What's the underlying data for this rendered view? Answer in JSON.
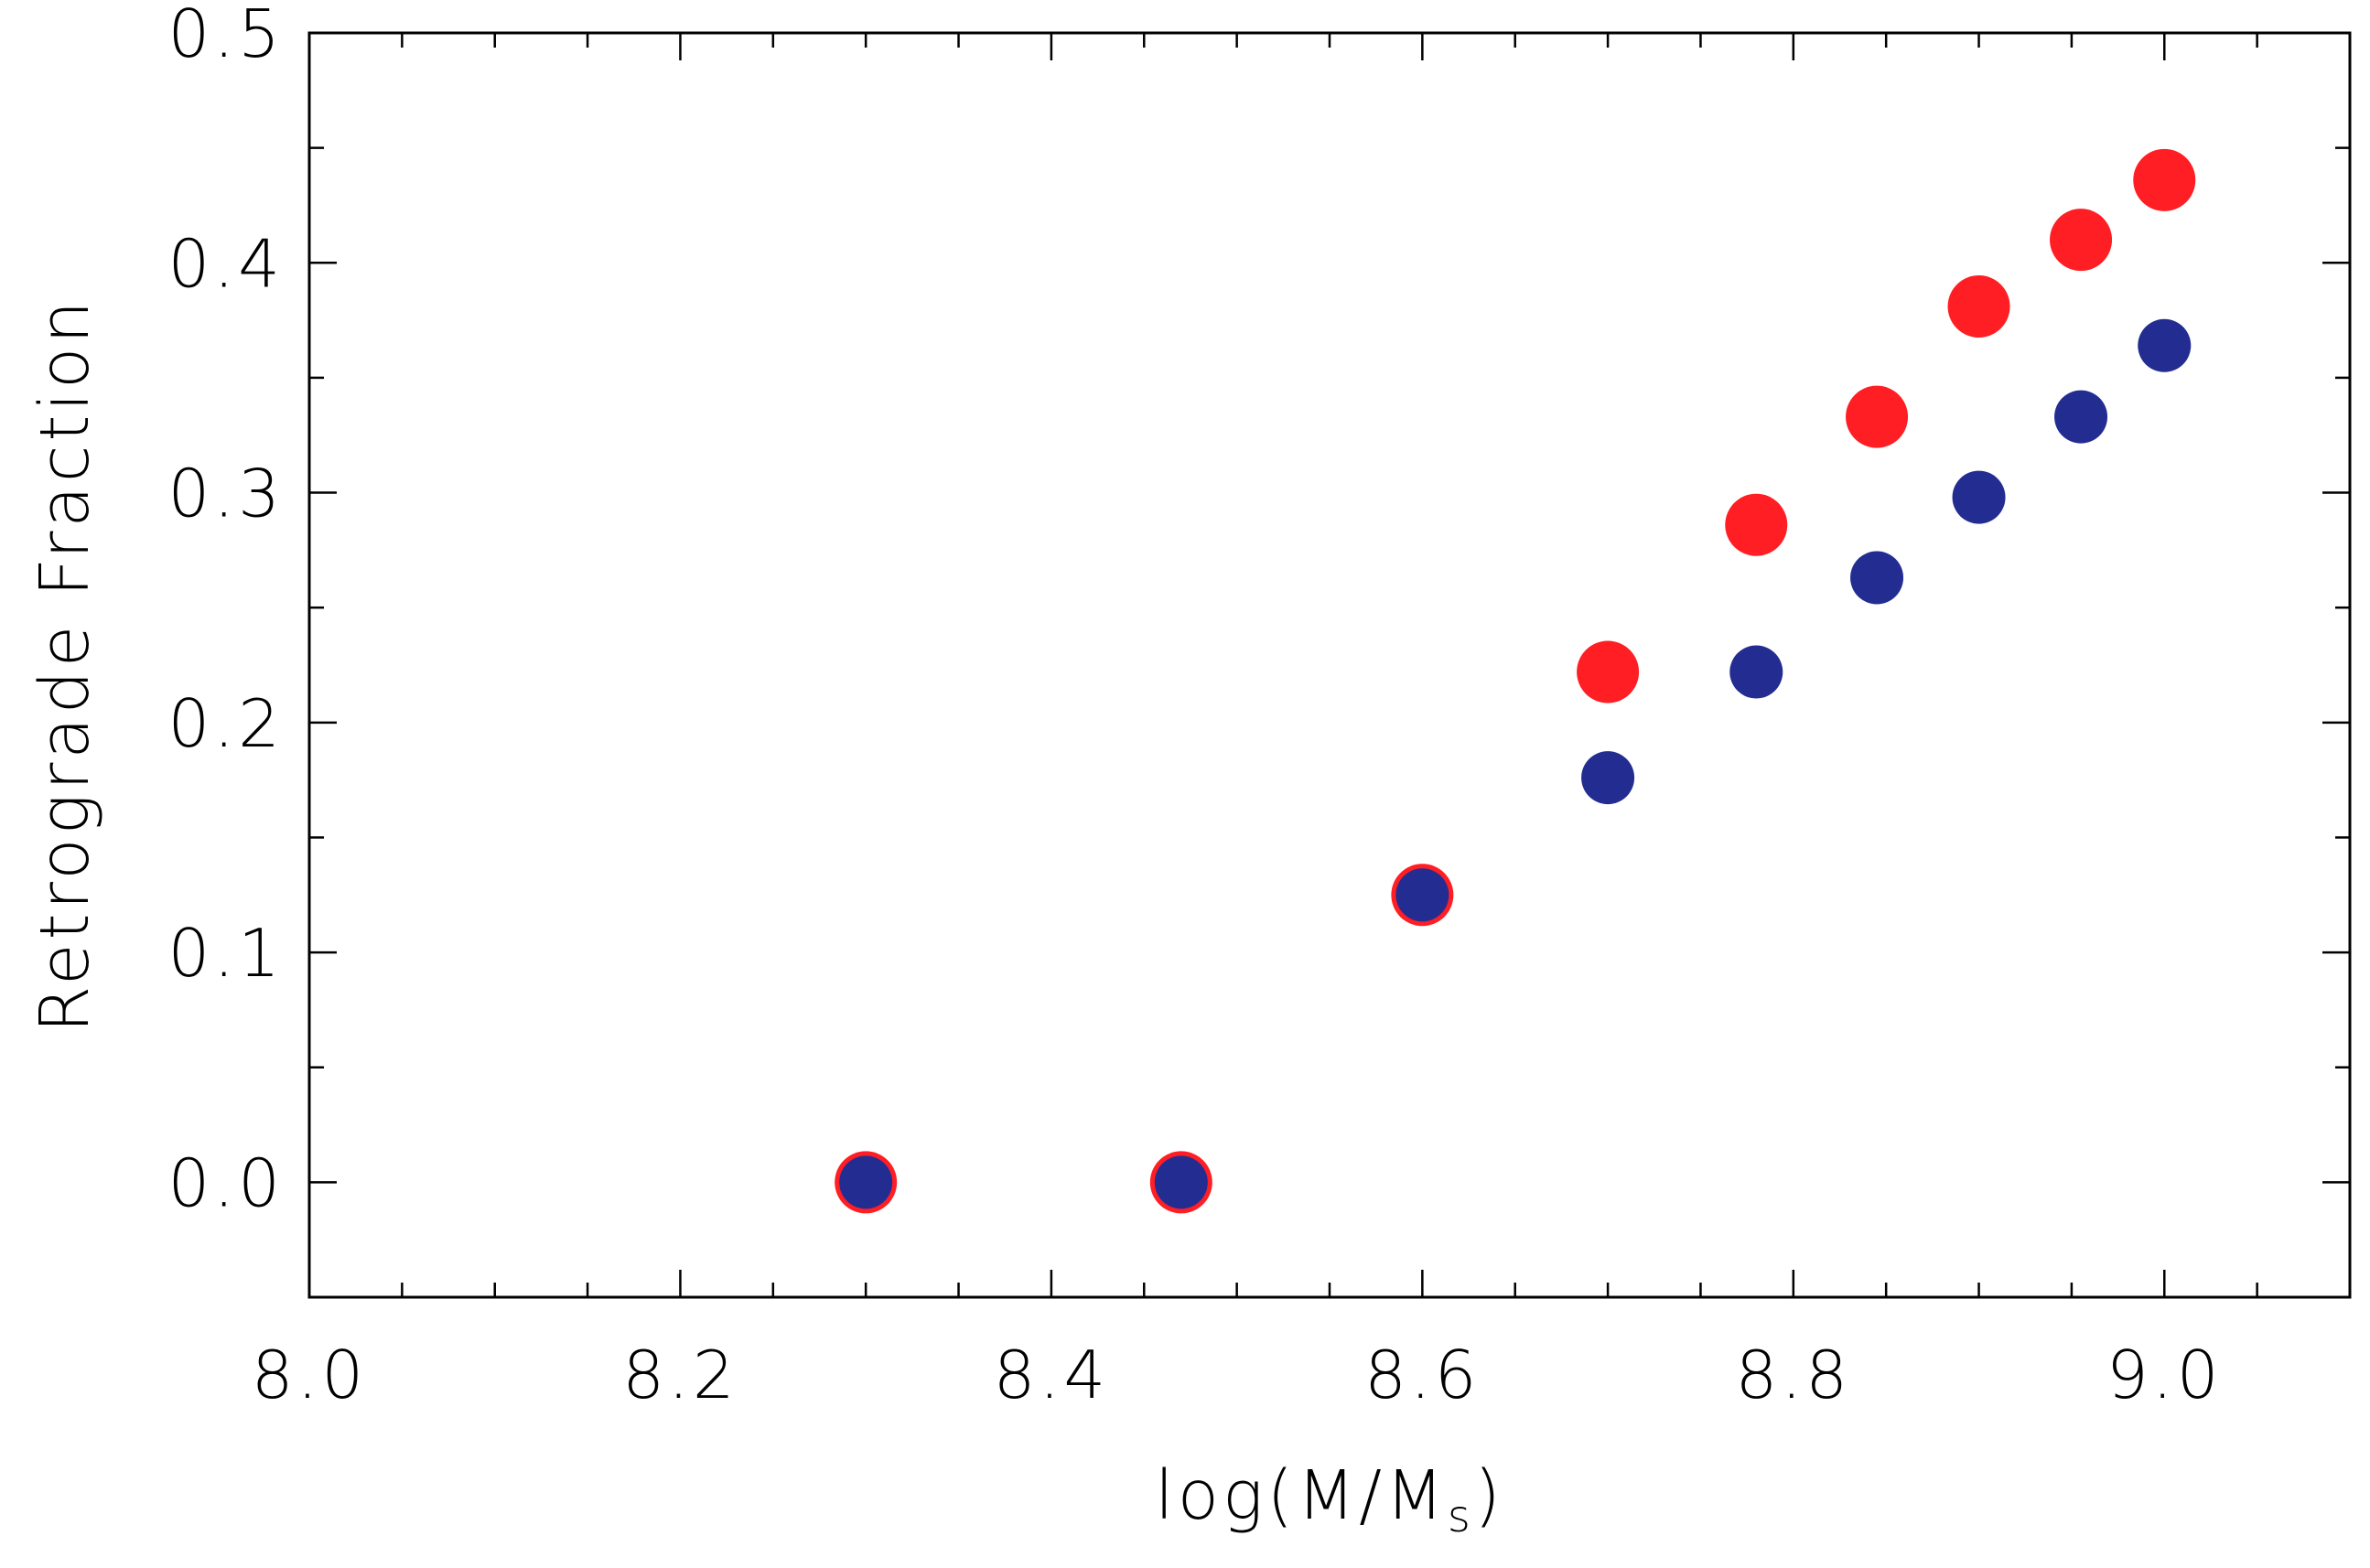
{
  "chart_data": {
    "type": "scatter",
    "title": "",
    "xlabel": "log(M/M",
    "xlabel_sub": "s",
    "xlabel_close": ")",
    "ylabel": "Retrograde Fraction",
    "xlim": [
      8.0,
      9.1
    ],
    "ylim": [
      -0.05,
      0.5
    ],
    "xticks": [
      {
        "value": 8.0,
        "label": "8.0"
      },
      {
        "value": 8.2,
        "label": "8.2"
      },
      {
        "value": 8.4,
        "label": "8.4"
      },
      {
        "value": 8.6,
        "label": "8.6"
      },
      {
        "value": 8.8,
        "label": "8.8"
      },
      {
        "value": 9.0,
        "label": "9.0"
      }
    ],
    "yticks": [
      {
        "value": 0.0,
        "label": "0.0"
      },
      {
        "value": 0.1,
        "label": "0.1"
      },
      {
        "value": 0.2,
        "label": "0.2"
      },
      {
        "value": 0.3,
        "label": "0.3"
      },
      {
        "value": 0.4,
        "label": "0.4"
      },
      {
        "value": 0.5,
        "label": "0.5"
      }
    ],
    "x_minor_step": 0.05,
    "y_minor_step": 0.05,
    "grid": false,
    "legend": "none",
    "series": [
      {
        "color": "#ff1e23",
        "x": [
          8.3,
          8.47,
          8.6,
          8.7,
          8.78,
          8.845,
          8.9,
          8.955,
          9.0
        ],
        "y": [
          0.0,
          0.0,
          0.125,
          0.222,
          0.286,
          0.333,
          0.381,
          0.41,
          0.436
        ]
      },
      {
        "color": "#232d91",
        "x": [
          8.3,
          8.47,
          8.6,
          8.7,
          8.78,
          8.845,
          8.9,
          8.955,
          9.0
        ],
        "y": [
          0.0,
          0.0,
          0.125,
          0.176,
          0.222,
          0.263,
          0.298,
          0.333,
          0.364
        ]
      }
    ]
  }
}
